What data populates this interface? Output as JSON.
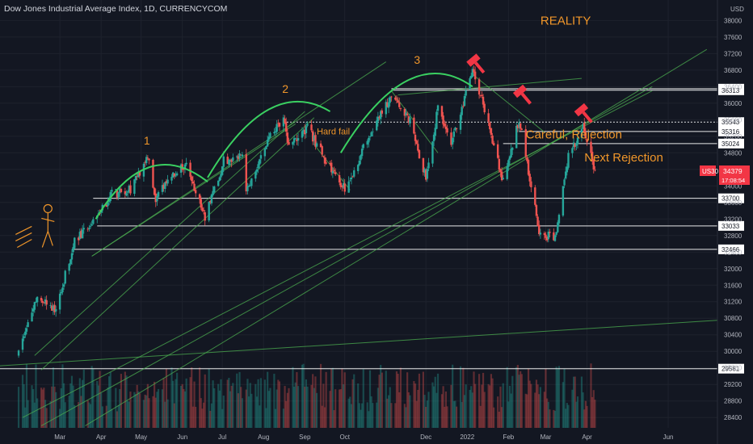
{
  "chart_data": {
    "type": "candlestick",
    "title": "Dow Jones Industrial Average Index, 1D, CURRENCYCOM",
    "currency": "USD",
    "symbol": "US30",
    "last_price": "34379",
    "countdown": "17:08:54",
    "x_ticks": [
      "Mar",
      "Apr",
      "May",
      "Jun",
      "Jul",
      "Aug",
      "Sep",
      "Oct",
      "Dec",
      "2022",
      "Feb",
      "Mar",
      "Apr",
      "Jun"
    ],
    "y_ticks": [
      "38000",
      "37600",
      "37200",
      "36800",
      "36400",
      "36000",
      "35600",
      "35200",
      "34800",
      "34400",
      "34000",
      "33600",
      "33200",
      "32800",
      "32400",
      "32000",
      "31600",
      "31200",
      "30800",
      "30400",
      "30000",
      "29600",
      "29200",
      "28800",
      "28400"
    ],
    "ylim": [
      28150,
      38300
    ],
    "levels": [
      "36351",
      "36313",
      "35543",
      "35316",
      "35024",
      "33700",
      "33033",
      "32466",
      "29581"
    ],
    "price_path": [
      {
        "date": "2021-01-29",
        "close": 29900
      },
      {
        "date": "2021-02-12",
        "close": 31400
      },
      {
        "date": "2021-02-26",
        "close": 31000
      },
      {
        "date": "2021-03-12",
        "close": 32700
      },
      {
        "date": "2021-03-26",
        "close": 33100
      },
      {
        "date": "2021-04-09",
        "close": 33800
      },
      {
        "date": "2021-04-23",
        "close": 33900
      },
      {
        "date": "2021-05-07",
        "close": 34700
      },
      {
        "date": "2021-05-12",
        "close": 33600
      },
      {
        "date": "2021-05-21",
        "close": 34200
      },
      {
        "date": "2021-06-04",
        "close": 34500
      },
      {
        "date": "2021-06-18",
        "close": 33200
      },
      {
        "date": "2021-07-02",
        "close": 34600
      },
      {
        "date": "2021-07-16",
        "close": 34700
      },
      {
        "date": "2021-07-19",
        "close": 33900
      },
      {
        "date": "2021-08-06",
        "close": 35200
      },
      {
        "date": "2021-08-16",
        "close": 35600
      },
      {
        "date": "2021-08-20",
        "close": 34900
      },
      {
        "date": "2021-09-03",
        "close": 35400
      },
      {
        "date": "2021-09-17",
        "close": 34600
      },
      {
        "date": "2021-10-01",
        "close": 33900
      },
      {
        "date": "2021-10-15",
        "close": 34900
      },
      {
        "date": "2021-11-05",
        "close": 36200
      },
      {
        "date": "2021-11-19",
        "close": 35600
      },
      {
        "date": "2021-12-01",
        "close": 34200
      },
      {
        "date": "2021-12-10",
        "close": 35900
      },
      {
        "date": "2021-12-20",
        "close": 35000
      },
      {
        "date": "2022-01-05",
        "close": 36800
      },
      {
        "date": "2022-01-14",
        "close": 35900
      },
      {
        "date": "2022-01-28",
        "close": 34100
      },
      {
        "date": "2022-02-09",
        "close": 35600
      },
      {
        "date": "2022-02-24",
        "close": 32900
      },
      {
        "date": "2022-03-08",
        "close": 32700
      },
      {
        "date": "2022-03-18",
        "close": 34700
      },
      {
        "date": "2022-03-29",
        "close": 35400
      },
      {
        "date": "2022-04-07",
        "close": 34379
      }
    ],
    "annotations": {
      "waves": [
        "1",
        "2",
        "3"
      ],
      "reality": "REALITY",
      "hard_fail": "Hard fail",
      "careful": "Careful, Rejection",
      "next": "Next Rejection"
    },
    "colors": {
      "background": "#131722",
      "up": "#26a69a",
      "down": "#ef5350",
      "grid": "#1e222d",
      "trendline": "#4caf50",
      "arc": "#3ad061",
      "level_line": "#ffffff",
      "annotation": "#f0962a",
      "text": "#d1d4dc",
      "price_tag": "#f23645"
    },
    "grid": true,
    "legend": "none"
  }
}
